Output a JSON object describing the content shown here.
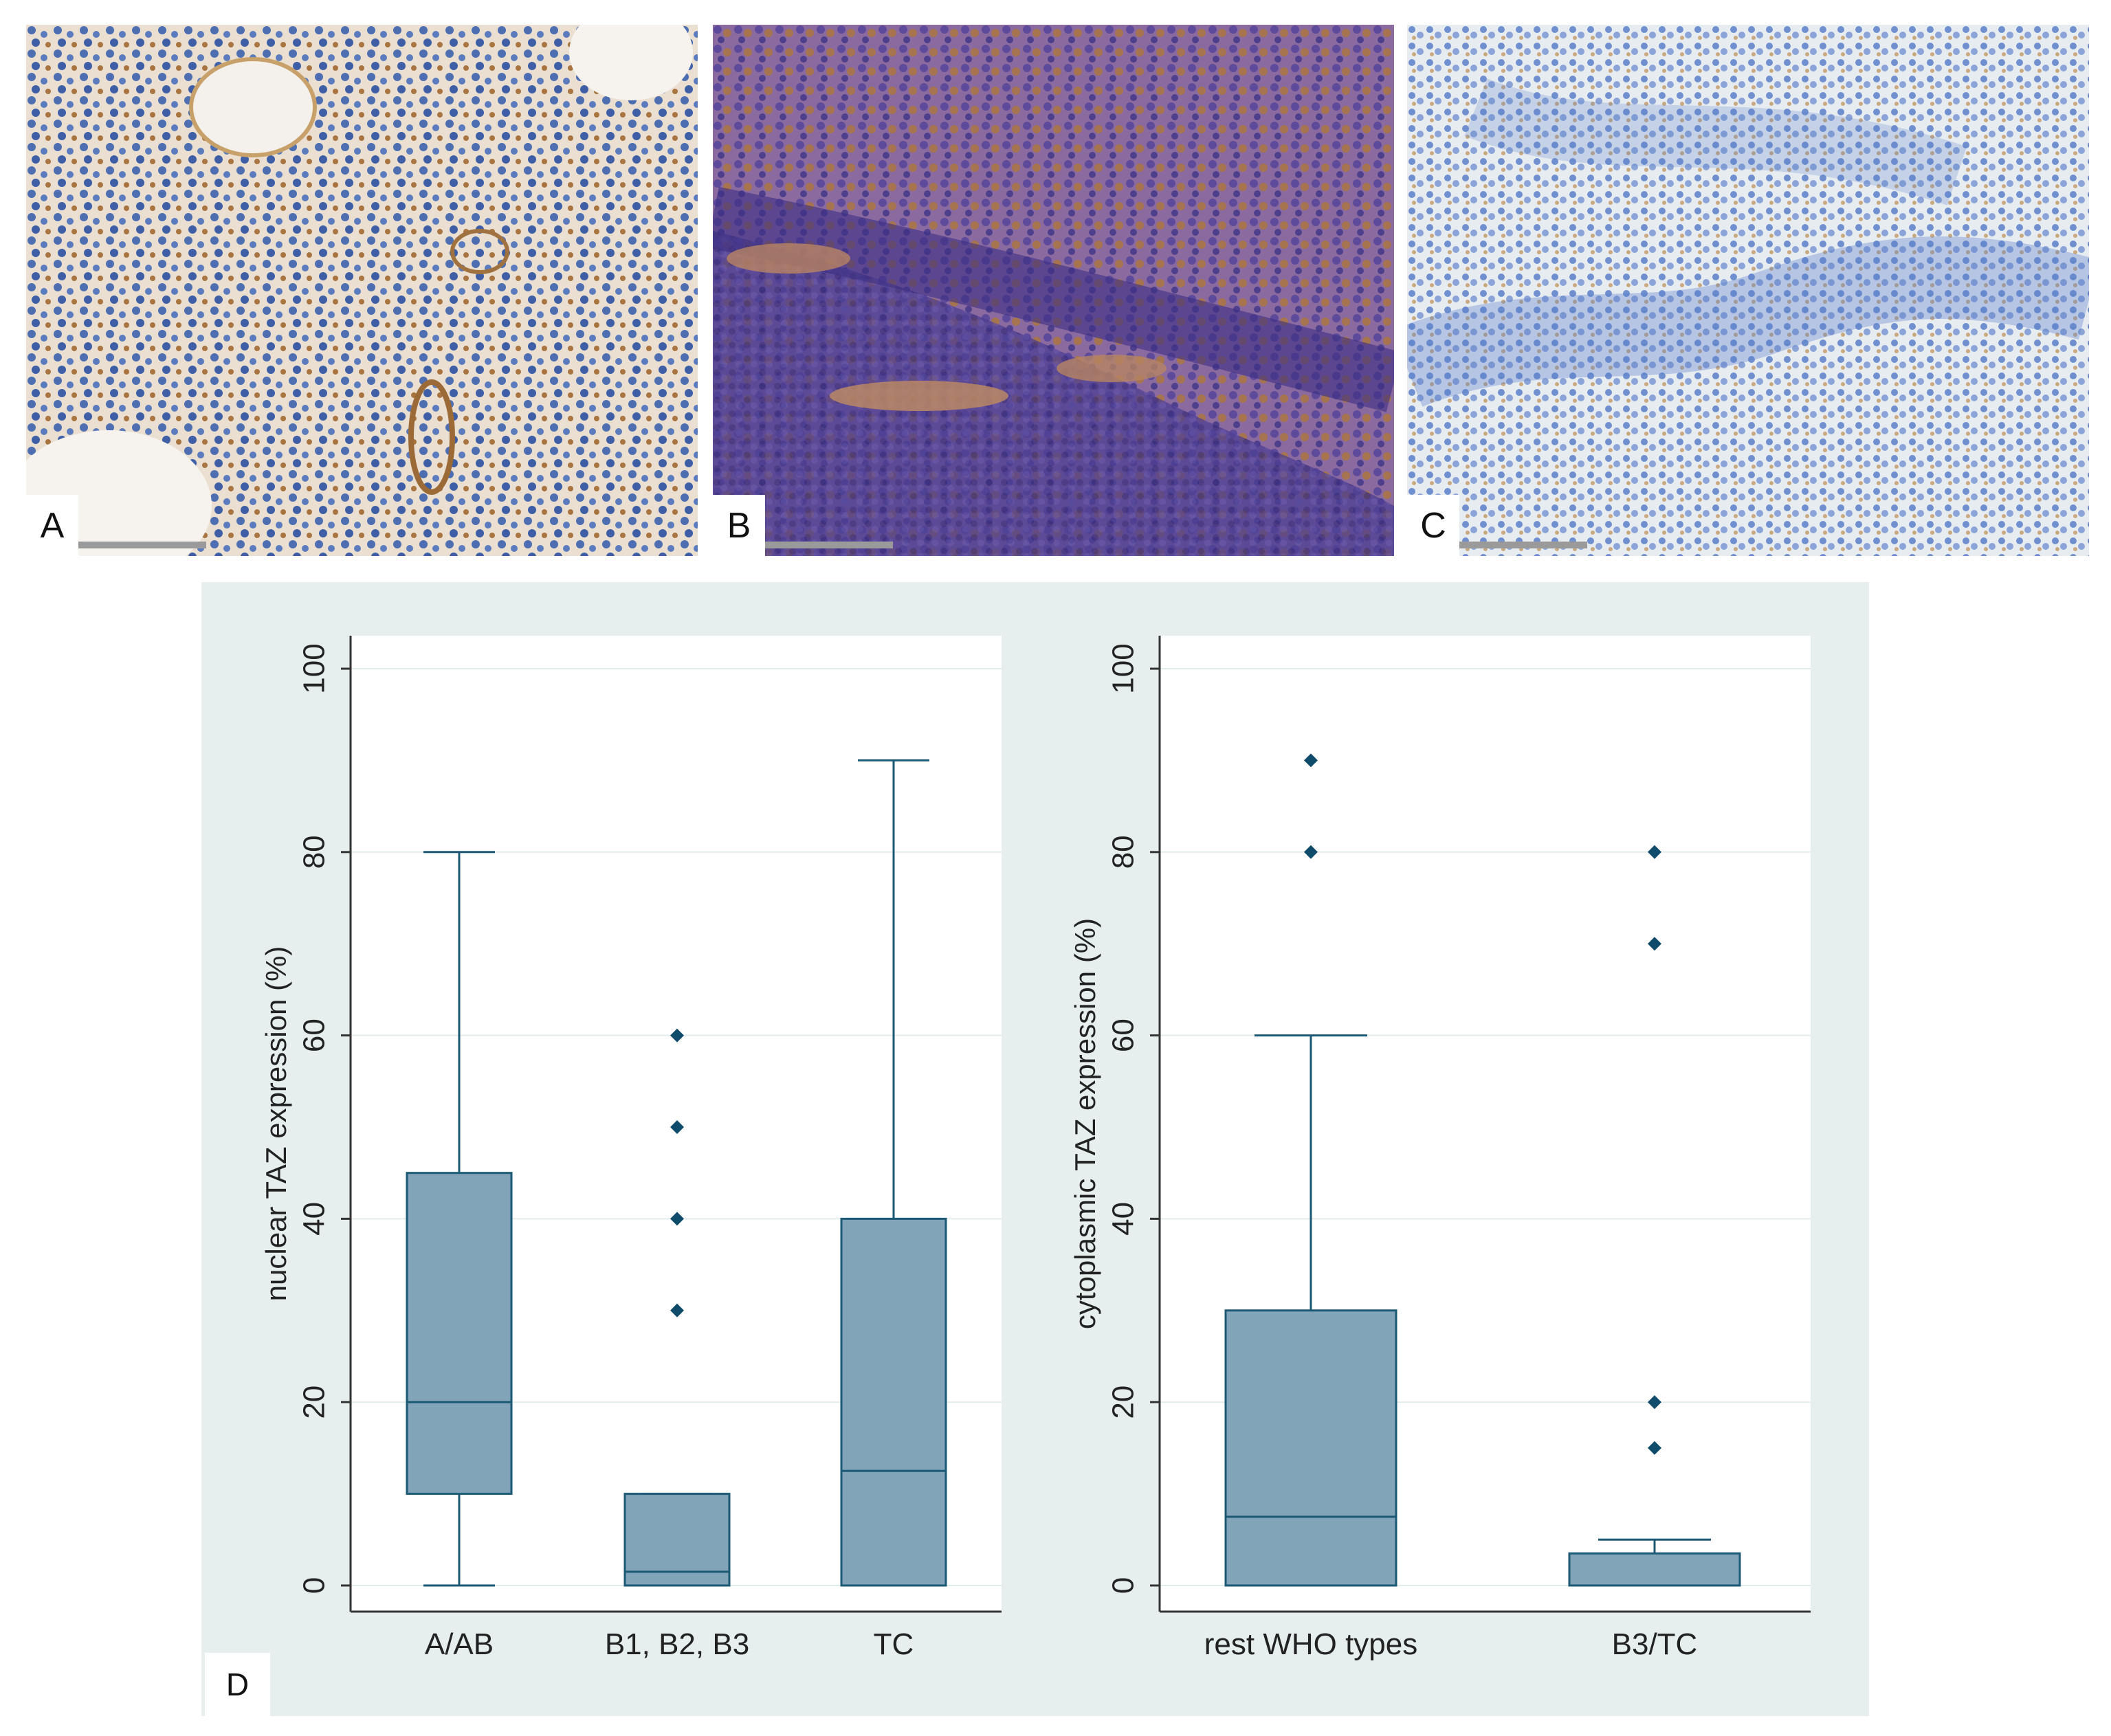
{
  "panels": {
    "A": {
      "label": "A"
    },
    "B": {
      "label": "B"
    },
    "C": {
      "label": "C"
    },
    "D": {
      "label": "D"
    }
  },
  "colors": {
    "box_fill": "#81a4b8",
    "box_stroke": "#1b5975",
    "point": "#0f4c6b",
    "chart_panel_bg": "#e6eeee",
    "plot_bg": "#ffffff",
    "grid": "#e3ecec",
    "he_pink_A": "#e9dfd2",
    "he_purple_B": "#6f5a9f",
    "he_blue_C": "#cfdbe8"
  },
  "chart_data": [
    {
      "type": "box",
      "ylabel": "nuclear TAZ expression (%)",
      "ylim": [
        0,
        100
      ],
      "yticks": [
        0,
        20,
        40,
        60,
        80,
        100
      ],
      "grid": true,
      "categories": [
        "A/AB",
        "B1, B2, B3",
        "TC"
      ],
      "boxes": [
        {
          "category": "A/AB",
          "min": 0,
          "q1": 10,
          "median": 20,
          "q3": 45,
          "max": 80,
          "outliers": []
        },
        {
          "category": "B1, B2, B3",
          "min": 0,
          "q1": 0,
          "median": 1.5,
          "q3": 10,
          "max": 10,
          "outliers": [
            30,
            40,
            50,
            60
          ]
        },
        {
          "category": "TC",
          "min": 0,
          "q1": 0,
          "median": 12.5,
          "q3": 40,
          "max": 90,
          "outliers": []
        }
      ]
    },
    {
      "type": "box",
      "ylabel": "cytoplasmic TAZ expression (%)",
      "ylim": [
        0,
        100
      ],
      "yticks": [
        0,
        20,
        40,
        60,
        80,
        100
      ],
      "grid": true,
      "categories": [
        "rest WHO types",
        "B3/TC"
      ],
      "boxes": [
        {
          "category": "rest WHO types",
          "min": 0,
          "q1": 0,
          "median": 7.5,
          "q3": 30,
          "max": 60,
          "outliers": [
            80,
            90
          ]
        },
        {
          "category": "B3/TC",
          "min": 0,
          "q1": 0,
          "median": 0,
          "q3": 3.5,
          "max": 5,
          "outliers": [
            15,
            20,
            70,
            80
          ]
        }
      ]
    }
  ]
}
